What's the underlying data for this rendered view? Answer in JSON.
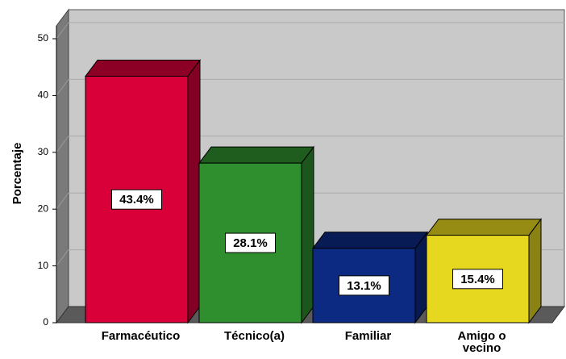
{
  "chart_data": {
    "type": "bar3d",
    "y_label": "Porcentaje",
    "categories": [
      "Farmacéutico",
      "Técnico(a)",
      "Familiar",
      "Amigo o vecino"
    ],
    "values": [
      43.4,
      28.1,
      13.1,
      15.4
    ],
    "value_labels": [
      "43.4%",
      "28.1%",
      "13.1%",
      "15.4%"
    ],
    "colors": [
      "#d9003a",
      "#2f8f2f",
      "#0c2a82",
      "#e6d81e"
    ],
    "ylim": [
      0,
      50
    ],
    "yticks": [
      0,
      10,
      20,
      30,
      40,
      50
    ],
    "grid": true
  }
}
